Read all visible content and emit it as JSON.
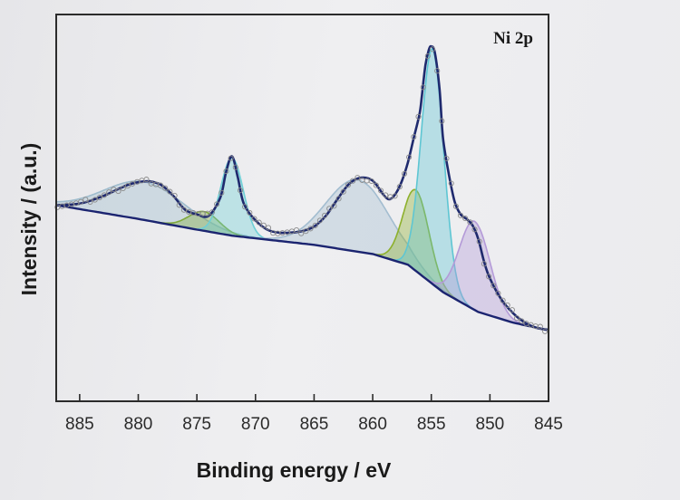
{
  "chart_data": {
    "type": "line",
    "title": "",
    "panel_label": "Ni 2p",
    "xlabel": "Binding energy / eV",
    "ylabel": "Intensity / (a.u.)",
    "xlim": [
      887,
      845
    ],
    "ylim": [
      0,
      100
    ],
    "x_reversed": true,
    "x_ticks": [
      885,
      880,
      875,
      870,
      865,
      860,
      855,
      850,
      845
    ],
    "y_ticks_shown": false,
    "grid": false,
    "legend": "none",
    "background_x": [
      887,
      880,
      875,
      872,
      865,
      860,
      857,
      854,
      851,
      848,
      845
    ],
    "background_y": [
      50.0,
      45.5,
      42.0,
      40.0,
      37.0,
      34.0,
      30.5,
      21.5,
      15.0,
      11.5,
      9.0
    ],
    "series": [
      {
        "kind": "envelope",
        "color": "#1f2a6e",
        "x": [
          887,
          885,
          883,
          881,
          880,
          879,
          878,
          877,
          876,
          875,
          874,
          873,
          872.5,
          872,
          871.5,
          871,
          870,
          869,
          868,
          867,
          866,
          865,
          864,
          863,
          862,
          861,
          860,
          859,
          858.5,
          858,
          857.5,
          857,
          856.5,
          856,
          855.8,
          855.5,
          855.2,
          855,
          854.7,
          854.3,
          854,
          853.5,
          853,
          852.5,
          852,
          851.5,
          851,
          850.5,
          850,
          849,
          848,
          847,
          846,
          845
        ],
        "y": [
          50.0,
          50.5,
          53.0,
          56.5,
          57.5,
          57.8,
          56.5,
          53.0,
          48.5,
          47.0,
          46.5,
          52.5,
          61.0,
          66.0,
          59.0,
          50.5,
          45.0,
          42.0,
          41.0,
          41.0,
          41.5,
          43.0,
          46.5,
          52.0,
          57.0,
          59.0,
          58.0,
          53.0,
          52.0,
          54.0,
          58.0,
          64.0,
          72.0,
          80.0,
          86.0,
          96.0,
          101.0,
          102.0,
          100.0,
          88.0,
          72.0,
          60.0,
          51.0,
          47.0,
          45.5,
          43.5,
          39.0,
          31.5,
          26.0,
          19.0,
          14.5,
          11.5,
          9.8,
          9.2
        ]
      },
      {
        "kind": "component",
        "center": 879.5,
        "height": 12.5,
        "width": 3.4,
        "color": "#9fbccd"
      },
      {
        "kind": "component",
        "center": 874.4,
        "height": 6.3,
        "width": 1.3,
        "color": "#7fa83a"
      },
      {
        "kind": "component",
        "center": 872.0,
        "height": 25.5,
        "width": 0.95,
        "color": "#6fcfd6"
      },
      {
        "kind": "component",
        "center": 861.3,
        "height": 23.5,
        "width": 2.7,
        "color": "#a3bdd0"
      },
      {
        "kind": "component",
        "center": 856.3,
        "height": 26.5,
        "width": 1.1,
        "color": "#8db02c"
      },
      {
        "kind": "component",
        "center": 854.9,
        "height": 77.0,
        "width": 0.95,
        "color": "#5ec6d3"
      },
      {
        "kind": "component",
        "center": 851.3,
        "height": 29.0,
        "width": 1.3,
        "color": "#b49ad8"
      }
    ]
  }
}
